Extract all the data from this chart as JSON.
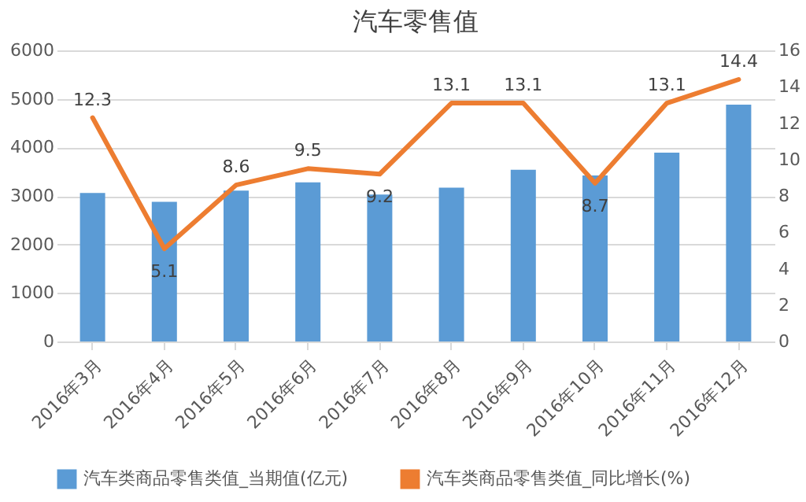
{
  "chart_data": {
    "type": "bar",
    "title": "汽车零售值",
    "categories": [
      "2016年3月",
      "2016年4月",
      "2016年5月",
      "2016年6月",
      "2016年7月",
      "2016年8月",
      "2016年9月",
      "2016年10月",
      "2016年11月",
      "2016年12月"
    ],
    "series": [
      {
        "name": "汽车类商品零售类值_当期值(亿元)",
        "color": "#5b9bd5",
        "values": [
          3060,
          2880,
          3110,
          3280,
          3030,
          3170,
          3540,
          3420,
          3890,
          4880
        ]
      },
      {
        "name": "汽车类商品零售类值_同比增长(%)",
        "color": "#ed7d31",
        "type": "line",
        "axis": "y2",
        "values": [
          12.3,
          5.1,
          8.6,
          9.5,
          9.2,
          13.1,
          13.1,
          8.7,
          13.1,
          14.4
        ],
        "value_labels": [
          "12.3",
          "5.1",
          "8.6",
          "9.5",
          "9.2",
          "13.1",
          "13.1",
          "8.7",
          "13.1",
          "14.4"
        ]
      }
    ],
    "ylim": [
      0,
      6000
    ],
    "yticks": [
      0,
      1000,
      2000,
      3000,
      4000,
      5000,
      6000
    ],
    "y2lim": [
      0,
      16
    ],
    "y2ticks": [
      0,
      2,
      4,
      6,
      8,
      10,
      12,
      14,
      16
    ],
    "grid": "y",
    "legend": "bottom"
  }
}
